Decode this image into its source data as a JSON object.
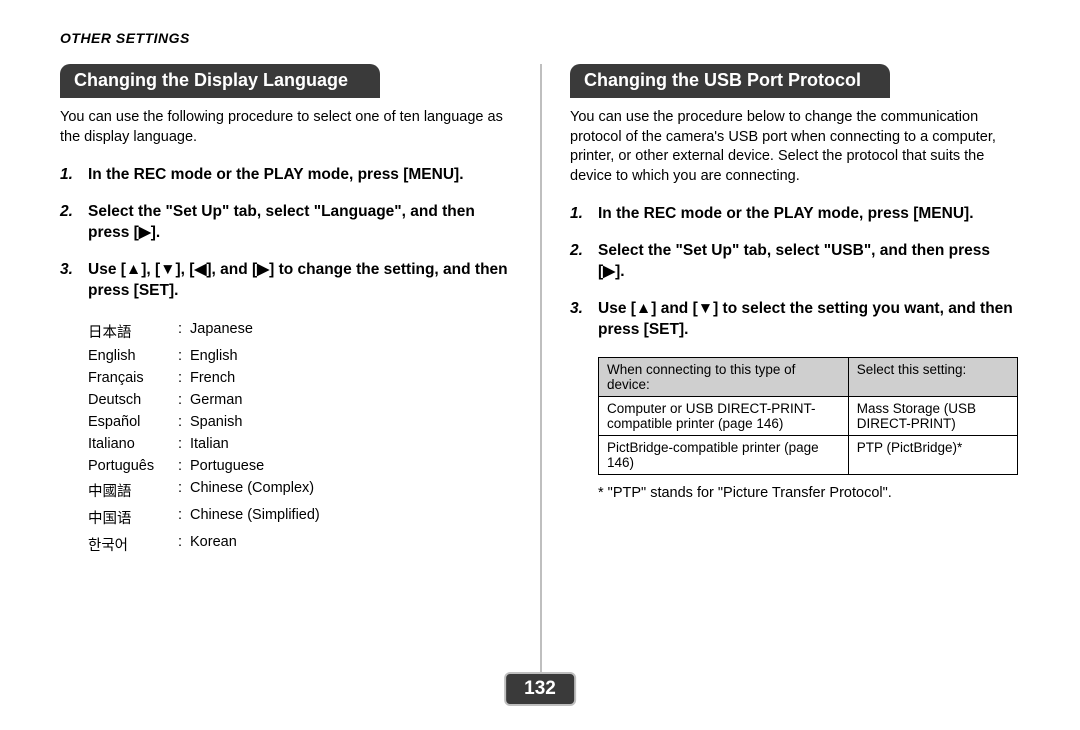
{
  "colors": {
    "header_bg": "#3a3a3a",
    "header_fg": "#ffffff",
    "divider": "#bfbfbf",
    "table_header_bg": "#cfcfcf",
    "table_border": "#000000",
    "page_number_bg": "#3a3a3a",
    "page_number_border": "#bfbfbf",
    "text": "#000000",
    "background": "#ffffff"
  },
  "header": "OTHER SETTINGS",
  "page_number": "132",
  "left": {
    "title": "Changing the Display Language",
    "intro": "You can use the following procedure to select one of ten language as the display language.",
    "steps": [
      "In the REC mode or the PLAY mode, press [MENU].",
      "Select the \"Set Up\" tab, select \"Language\", and then press [▶].",
      "Use [▲], [▼], [◀], and [▶] to change the setting, and then press [SET]."
    ],
    "languages": [
      {
        "native": "日本語",
        "english": "Japanese"
      },
      {
        "native": "English",
        "english": "English"
      },
      {
        "native": "Français",
        "english": "French"
      },
      {
        "native": "Deutsch",
        "english": "German"
      },
      {
        "native": "Español",
        "english": "Spanish"
      },
      {
        "native": "Italiano",
        "english": "Italian"
      },
      {
        "native": "Português",
        "english": "Portuguese"
      },
      {
        "native": "中國語",
        "english": "Chinese (Complex)"
      },
      {
        "native": "中国语",
        "english": "Chinese (Simplified)"
      },
      {
        "native": "한국어",
        "english": "Korean"
      }
    ]
  },
  "right": {
    "title": "Changing the USB Port Protocol",
    "intro": "You can use the procedure below to change the communication protocol of the camera's USB port when connecting to a computer, printer, or other external device. Select the protocol that suits the device to which you are connecting.",
    "steps": [
      "In the REC mode or the PLAY mode, press [MENU].",
      "Select the \"Set Up\" tab, select \"USB\", and then press [▶].",
      "Use [▲] and [▼] to select the setting you want, and then press [SET]."
    ],
    "table": {
      "headers": [
        "When connecting to this type of device:",
        "Select this setting:"
      ],
      "rows": [
        [
          "Computer or USB DIRECT-PRINT-compatible printer (page 146)",
          "Mass Storage (USB DIRECT-PRINT)"
        ],
        [
          "PictBridge-compatible printer (page 146)",
          "PTP (PictBridge)*"
        ]
      ]
    },
    "footnote": "* \"PTP\" stands for \"Picture Transfer Protocol\"."
  }
}
